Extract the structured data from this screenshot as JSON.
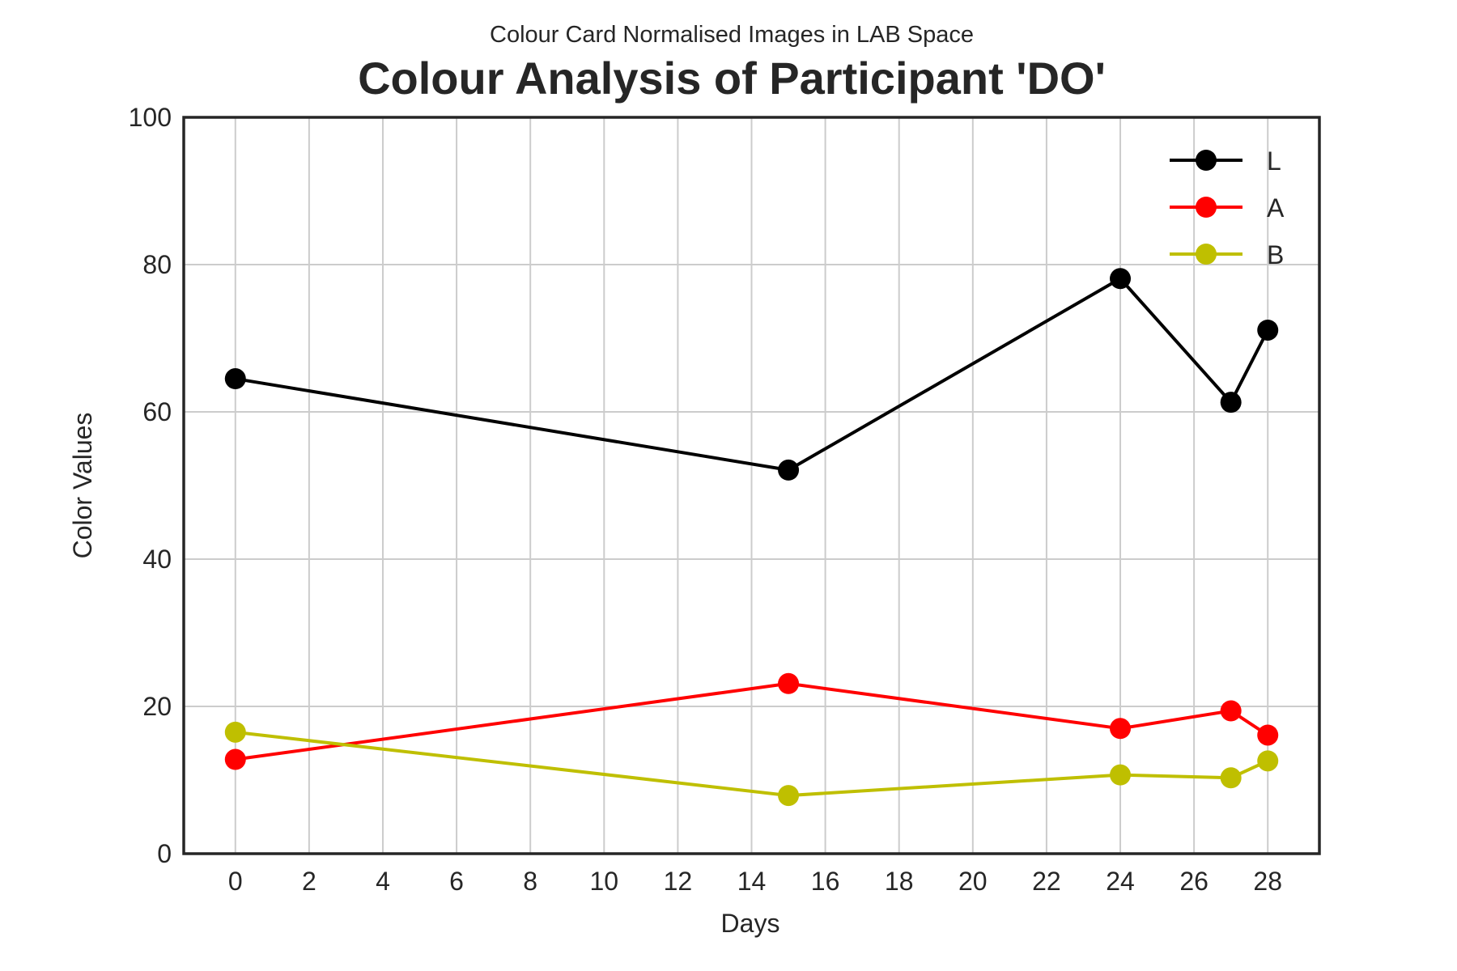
{
  "chart_data": {
    "type": "line",
    "subtitle": "Colour Card Normalised Images in LAB Space",
    "title": "Colour Analysis of Participant 'DO'",
    "xlabel": "Days",
    "ylabel": "Color Values",
    "x": [
      0,
      15,
      24,
      27,
      28
    ],
    "xlim": [
      -1.4,
      29.4
    ],
    "ylim": [
      0,
      100
    ],
    "xticks": [
      0,
      2,
      4,
      6,
      8,
      10,
      12,
      14,
      16,
      18,
      20,
      22,
      24,
      26,
      28
    ],
    "yticks": [
      0,
      20,
      40,
      60,
      80,
      100
    ],
    "grid": true,
    "legend_position": "top-right",
    "series": [
      {
        "name": "L",
        "color": "#000000",
        "values": [
          64.5,
          52.1,
          78.1,
          61.3,
          71.1
        ]
      },
      {
        "name": "A",
        "color": "#ff0000",
        "values": [
          12.8,
          23.1,
          17.0,
          19.4,
          16.1
        ]
      },
      {
        "name": "B",
        "color": "#bfbf00",
        "values": [
          16.5,
          7.9,
          10.7,
          10.3,
          12.6
        ]
      }
    ]
  }
}
